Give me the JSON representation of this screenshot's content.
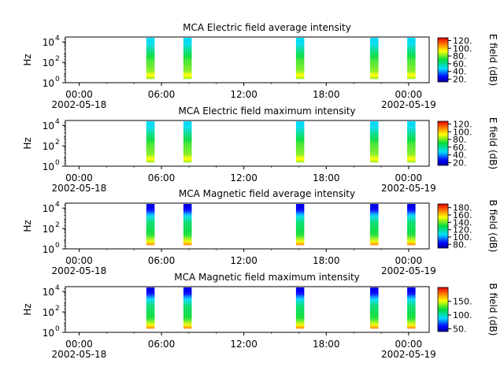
{
  "chart_data": [
    {
      "type": "heatmap",
      "title": "MCA  Electric field average intensity",
      "ylabel": "Hz",
      "y_scale": "log",
      "ylim": [
        1,
        30000
      ],
      "y_ticks": [
        {
          "base": "10",
          "exp": "0"
        },
        {
          "base": "10",
          "exp": "2"
        },
        {
          "base": "10",
          "exp": "4"
        }
      ],
      "x_ticks": [
        "00:00",
        "06:00",
        "12:00",
        "18:00",
        "00:00"
      ],
      "x_dates": [
        "2002-05-18",
        "2002-05-19"
      ],
      "xlim_hours": [
        -1,
        25.5
      ],
      "data_blocks_hours": [
        [
          4.9,
          5.5
        ],
        [
          7.6,
          8.2
        ],
        [
          15.8,
          16.4
        ],
        [
          21.2,
          21.8
        ],
        [
          23.9,
          24.5
        ]
      ],
      "colorbar": {
        "label": "E field (dB)",
        "range": [
          13,
          127
        ],
        "ticks": [
          "20.",
          "40.",
          "60.",
          "80.",
          "100.",
          "120."
        ],
        "tick_values": [
          20,
          40,
          60,
          80,
          100,
          120
        ]
      },
      "colormap": "rainbow",
      "profile": "electric"
    },
    {
      "type": "heatmap",
      "title": "MCA  Electric field maximum intensity",
      "ylabel": "Hz",
      "y_scale": "log",
      "ylim": [
        1,
        30000
      ],
      "y_ticks": [
        {
          "base": "10",
          "exp": "0"
        },
        {
          "base": "10",
          "exp": "2"
        },
        {
          "base": "10",
          "exp": "4"
        }
      ],
      "x_ticks": [
        "00:00",
        "06:00",
        "12:00",
        "18:00",
        "00:00"
      ],
      "x_dates": [
        "2002-05-18",
        "2002-05-19"
      ],
      "xlim_hours": [
        -1,
        25.5
      ],
      "data_blocks_hours": [
        [
          4.9,
          5.5
        ],
        [
          7.6,
          8.2
        ],
        [
          15.8,
          16.4
        ],
        [
          21.2,
          21.8
        ],
        [
          23.9,
          24.5
        ]
      ],
      "colorbar": {
        "label": "E field (dB)",
        "range": [
          13,
          127
        ],
        "ticks": [
          "20.",
          "40.",
          "60.",
          "80.",
          "100.",
          "120."
        ],
        "tick_values": [
          20,
          40,
          60,
          80,
          100,
          120
        ]
      },
      "colormap": "rainbow",
      "profile": "electric"
    },
    {
      "type": "heatmap",
      "title": "MCA  Magnetic field average intensity",
      "ylabel": "Hz",
      "y_scale": "log",
      "ylim": [
        1,
        30000
      ],
      "y_ticks": [
        {
          "base": "10",
          "exp": "0"
        },
        {
          "base": "10",
          "exp": "2"
        },
        {
          "base": "10",
          "exp": "4"
        }
      ],
      "x_ticks": [
        "00:00",
        "06:00",
        "12:00",
        "18:00",
        "00:00"
      ],
      "x_dates": [
        "2002-05-18",
        "2002-05-19"
      ],
      "xlim_hours": [
        -1,
        25.5
      ],
      "data_blocks_hours": [
        [
          4.9,
          5.5
        ],
        [
          7.6,
          8.2
        ],
        [
          15.8,
          16.4
        ],
        [
          21.2,
          21.8
        ],
        [
          23.9,
          24.5
        ]
      ],
      "colorbar": {
        "label": "B field (dB)",
        "range": [
          70,
          190
        ],
        "ticks": [
          "80.",
          "100.",
          "120.",
          "140.",
          "160.",
          "180."
        ],
        "tick_values": [
          80,
          100,
          120,
          140,
          160,
          180
        ]
      },
      "colormap": "rainbow",
      "profile": "magnetic"
    },
    {
      "type": "heatmap",
      "title": "MCA  Magnetic field maximum intensity",
      "ylabel": "Hz",
      "y_scale": "log",
      "ylim": [
        1,
        30000
      ],
      "y_ticks": [
        {
          "base": "10",
          "exp": "0"
        },
        {
          "base": "10",
          "exp": "2"
        },
        {
          "base": "10",
          "exp": "4"
        }
      ],
      "x_ticks": [
        "00:00",
        "06:00",
        "12:00",
        "18:00",
        "00:00"
      ],
      "x_dates": [
        "2002-05-18",
        "2002-05-19"
      ],
      "xlim_hours": [
        -1,
        25.5
      ],
      "data_blocks_hours": [
        [
          4.9,
          5.5
        ],
        [
          7.6,
          8.2
        ],
        [
          15.8,
          16.4
        ],
        [
          21.2,
          21.8
        ],
        [
          23.9,
          24.5
        ]
      ],
      "colorbar": {
        "label": "B field (dB)",
        "range": [
          40,
          200
        ],
        "ticks": [
          "50.",
          "100.",
          "150."
        ],
        "tick_values": [
          50,
          100,
          150
        ]
      },
      "colormap": "rainbow",
      "profile": "magnetic"
    }
  ]
}
